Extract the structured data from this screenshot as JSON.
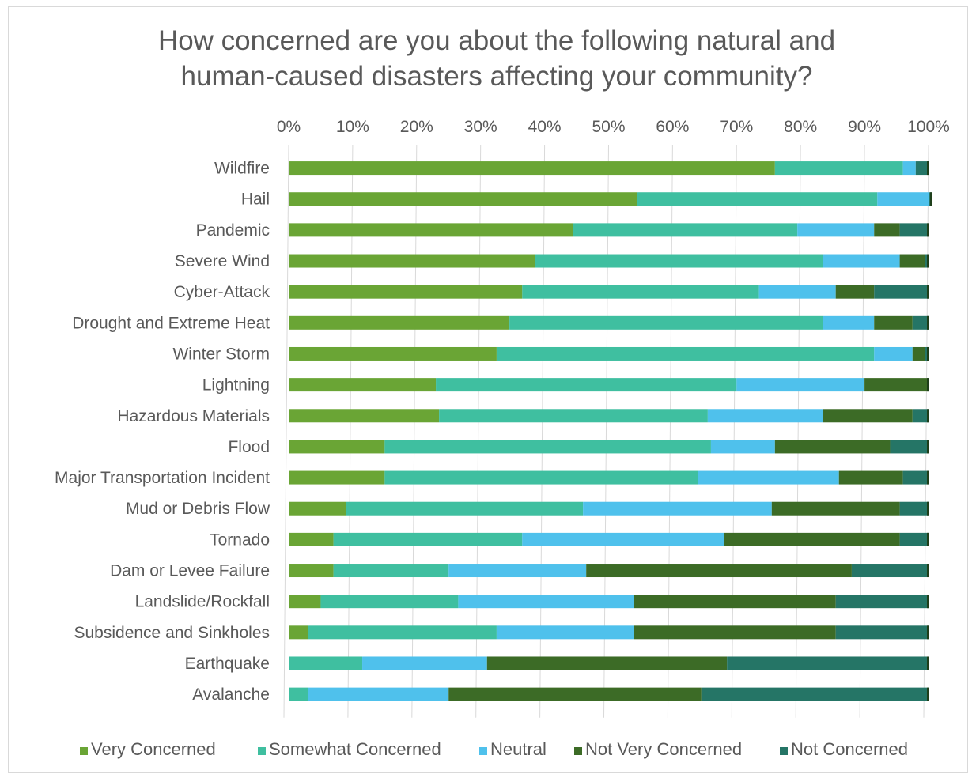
{
  "chart_data": {
    "type": "bar",
    "orientation": "horizontal",
    "stacked": "percent",
    "title": [
      "How concerned are you about the following natural and",
      "human-caused disasters affecting your community?"
    ],
    "x_axis": {
      "position": "top",
      "range": [
        0,
        100
      ],
      "ticks": [
        "0%",
        "10%",
        "20%",
        "30%",
        "40%",
        "50%",
        "60%",
        "70%",
        "80%",
        "90%",
        "100%"
      ]
    },
    "grid": true,
    "legend": {
      "position": "bottom"
    },
    "categories": [
      "Wildfire",
      "Hail",
      "Pandemic",
      "Severe Wind",
      "Cyber-Attack",
      "Drought and Extreme Heat",
      "Winter Storm",
      "Lightning",
      "Hazardous Materials",
      "Flood",
      "Major Transportation Incident",
      "Mud or Debris Flow",
      "Tornado",
      "Dam or Levee Failure",
      "Landslide/Rockfall",
      "Subsidence and Sinkholes",
      "Earthquake",
      "Avalanche"
    ],
    "series": [
      {
        "name": "Very Concerned",
        "color": "#6aa535",
        "values": [
          76,
          54.5,
          44.5,
          38.5,
          36.5,
          34.5,
          32.5,
          23,
          23.5,
          15,
          15,
          9,
          7,
          7,
          5,
          3,
          0,
          0
        ]
      },
      {
        "name": "Somewhat Concerned",
        "color": "#3fbfa0",
        "values": [
          20,
          37.5,
          35,
          45,
          37,
          49,
          59,
          47,
          42,
          51,
          49,
          37,
          29.5,
          18,
          21.5,
          29.5,
          11.5,
          3
        ]
      },
      {
        "name": "Neutral",
        "color": "#4fc1ec",
        "values": [
          2,
          8,
          12,
          12,
          12,
          8,
          6,
          20,
          18,
          10,
          22,
          29.5,
          31.5,
          21.5,
          27.5,
          21.5,
          19.5,
          22
        ]
      },
      {
        "name": "Not Very Concerned",
        "color": "#3c6b26",
        "values": [
          0,
          0,
          4,
          4,
          6,
          6,
          2,
          10,
          14,
          18,
          10,
          20,
          27.5,
          41.5,
          31.5,
          31.5,
          37.5,
          39.5
        ]
      },
      {
        "name": "Not Concerned",
        "color": "#257566",
        "values": [
          2,
          0.5,
          4.5,
          0.5,
          8.5,
          2.5,
          0.5,
          0,
          2.5,
          6,
          4,
          4.5,
          4.5,
          12,
          14.5,
          14.5,
          31.5,
          35.5
        ]
      }
    ]
  }
}
